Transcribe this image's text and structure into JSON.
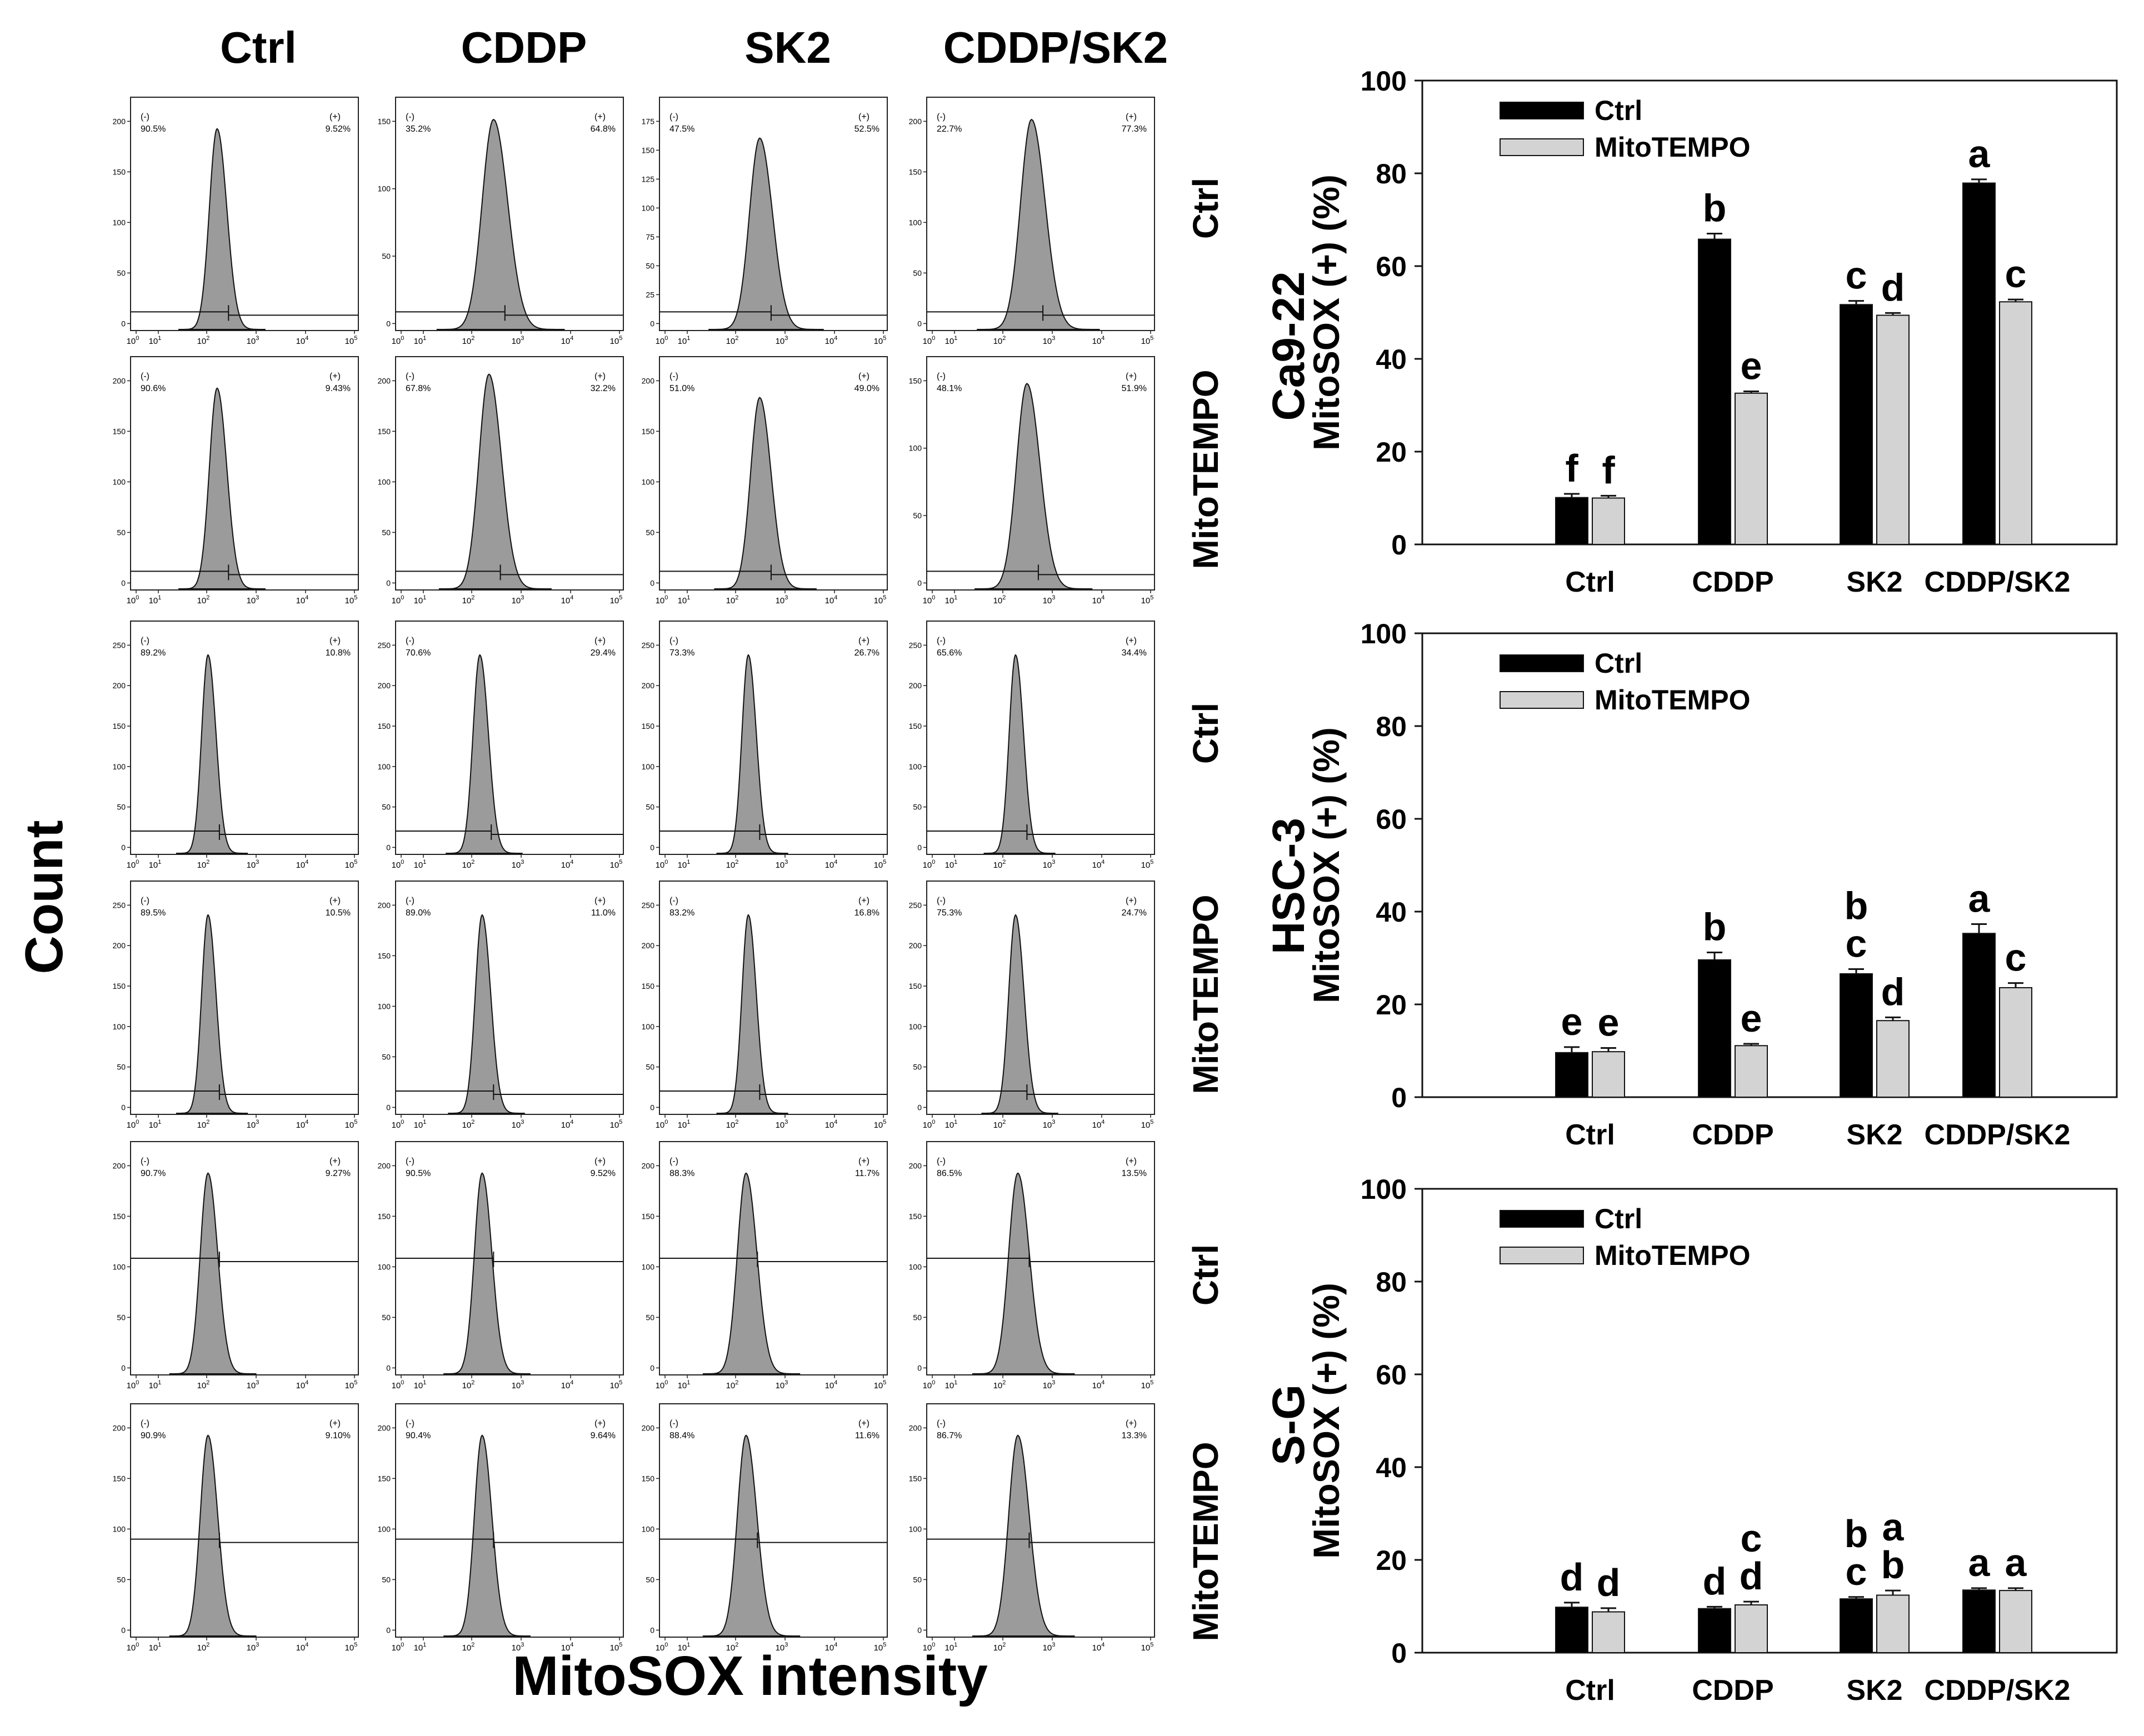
{
  "headers": {
    "columns": [
      "Ctrl",
      "CDDP",
      "SK2",
      "CDDP/SK2"
    ],
    "y_label": "Count",
    "x_label": "MitoSOX intensity"
  },
  "cell_lines": [
    "Ca9-22",
    "HSC-3",
    "S-G"
  ],
  "flow_rows": [
    {
      "label": "Ctrl",
      "yticks": [
        [
          0,
          50,
          100,
          150,
          200
        ],
        [
          0,
          50,
          100,
          150
        ],
        [
          0,
          25,
          50,
          75,
          100,
          125,
          150,
          175
        ],
        [
          0,
          50,
          100,
          150,
          200
        ]
      ],
      "panels": [
        {
          "neg": "90.5%",
          "pos": "9.52%"
        },
        {
          "neg": "35.2%",
          "pos": "64.8%"
        },
        {
          "neg": "47.5%",
          "pos": "52.5%"
        },
        {
          "neg": "22.7%",
          "pos": "77.3%"
        }
      ]
    },
    {
      "label": "MitoTEMPO",
      "yticks": [
        [
          0,
          50,
          100,
          150,
          200
        ],
        [
          0,
          50,
          100,
          150,
          200
        ],
        [
          0,
          50,
          100,
          150,
          200
        ],
        [
          0,
          50,
          100,
          150
        ]
      ],
      "panels": [
        {
          "neg": "90.6%",
          "pos": "9.43%"
        },
        {
          "neg": "67.8%",
          "pos": "32.2%"
        },
        {
          "neg": "51.0%",
          "pos": "49.0%"
        },
        {
          "neg": "48.1%",
          "pos": "51.9%"
        }
      ]
    },
    {
      "label": "Ctrl",
      "yticks": [
        [
          0,
          50,
          100,
          150,
          200,
          250
        ],
        [
          0,
          50,
          100,
          150,
          200,
          250
        ],
        [
          0,
          50,
          100,
          150,
          200,
          250
        ],
        [
          0,
          50,
          100,
          150,
          200,
          250
        ]
      ],
      "panels": [
        {
          "neg": "89.2%",
          "pos": "10.8%"
        },
        {
          "neg": "70.6%",
          "pos": "29.4%"
        },
        {
          "neg": "73.3%",
          "pos": "26.7%"
        },
        {
          "neg": "65.6%",
          "pos": "34.4%"
        }
      ]
    },
    {
      "label": "MitoTEMPO",
      "yticks": [
        [
          0,
          50,
          100,
          150,
          200,
          250
        ],
        [
          0,
          50,
          100,
          150,
          200
        ],
        [
          0,
          50,
          100,
          150,
          200,
          250
        ],
        [
          0,
          50,
          100,
          150,
          200,
          250
        ]
      ],
      "panels": [
        {
          "neg": "89.5%",
          "pos": "10.5%"
        },
        {
          "neg": "89.0%",
          "pos": "11.0%"
        },
        {
          "neg": "83.2%",
          "pos": "16.8%"
        },
        {
          "neg": "75.3%",
          "pos": "24.7%"
        }
      ]
    },
    {
      "label": "Ctrl",
      "yticks": [
        [
          0,
          50,
          100,
          150,
          200
        ],
        [
          0,
          50,
          100,
          150,
          200
        ],
        [
          0,
          50,
          100,
          150,
          200
        ],
        [
          0,
          50,
          100,
          150,
          200
        ]
      ],
      "panels": [
        {
          "neg": "90.7%",
          "pos": "9.27%"
        },
        {
          "neg": "90.5%",
          "pos": "9.52%"
        },
        {
          "neg": "88.3%",
          "pos": "11.7%"
        },
        {
          "neg": "86.5%",
          "pos": "13.5%"
        }
      ]
    },
    {
      "label": "MitoTEMPO",
      "yticks": [
        [
          0,
          50,
          100,
          150,
          200
        ],
        [
          0,
          50,
          100,
          150,
          200
        ],
        [
          0,
          50,
          100,
          150,
          200
        ],
        [
          0,
          50,
          100,
          150,
          200
        ]
      ],
      "panels": [
        {
          "neg": "90.9%",
          "pos": "9.10%"
        },
        {
          "neg": "90.4%",
          "pos": "9.64%"
        },
        {
          "neg": "88.4%",
          "pos": "11.6%"
        },
        {
          "neg": "86.7%",
          "pos": "13.3%"
        }
      ]
    }
  ],
  "flow_gate_labels": {
    "neg": "(-)",
    "pos": "(+)"
  },
  "chart_data": [
    {
      "type": "bar",
      "cell_line": "Ca9-22",
      "categories": [
        "Ctrl",
        "CDDP",
        "SK2",
        "CDDP/SK2"
      ],
      "ylabel": "MitoSOX (+) (%)",
      "ylim": [
        0,
        100
      ],
      "yticks": [
        0,
        20,
        40,
        60,
        80,
        100
      ],
      "legend_position": "top-left",
      "series": [
        {
          "name": "Ctrl",
          "color": "#000000",
          "values": [
            10.1,
            65.8,
            51.7,
            77.9
          ],
          "errors": [
            0.8,
            1.2,
            0.8,
            0.8
          ],
          "letters": [
            [
              "f"
            ],
            [
              "b"
            ],
            [
              "c"
            ],
            [
              "a"
            ]
          ]
        },
        {
          "name": "MitoTEMPO",
          "color": "#d3d3d3",
          "values": [
            10.0,
            32.6,
            49.4,
            52.3
          ],
          "errors": [
            0.5,
            0.4,
            0.5,
            0.5
          ],
          "letters": [
            [
              "f"
            ],
            [
              "e"
            ],
            [
              "d"
            ],
            [
              "c"
            ]
          ]
        }
      ]
    },
    {
      "type": "bar",
      "cell_line": "HSC-3",
      "categories": [
        "Ctrl",
        "CDDP",
        "SK2",
        "CDDP/SK2"
      ],
      "ylabel": "MitoSOX (+) (%)",
      "ylim": [
        0,
        100
      ],
      "yticks": [
        0,
        20,
        40,
        60,
        80,
        100
      ],
      "legend_position": "top-left",
      "series": [
        {
          "name": "Ctrl",
          "color": "#000000",
          "values": [
            9.6,
            29.6,
            26.6,
            35.3
          ],
          "errors": [
            1.2,
            1.6,
            1.0,
            2.0
          ],
          "letters": [
            [
              "e"
            ],
            [
              "b"
            ],
            [
              "b",
              "c"
            ],
            [
              "a"
            ]
          ]
        },
        {
          "name": "MitoTEMPO",
          "color": "#d3d3d3",
          "values": [
            9.8,
            11.1,
            16.5,
            23.6
          ],
          "errors": [
            0.8,
            0.4,
            0.7,
            1.0
          ],
          "letters": [
            [
              "e"
            ],
            [
              "e"
            ],
            [
              "d"
            ],
            [
              "c"
            ]
          ]
        }
      ]
    },
    {
      "type": "bar",
      "cell_line": "S-G",
      "categories": [
        "Ctrl",
        "CDDP",
        "SK2",
        "CDDP/SK2"
      ],
      "ylabel": "MitoSOX (+) (%)",
      "ylim": [
        0,
        100
      ],
      "yticks": [
        0,
        20,
        40,
        60,
        80,
        100
      ],
      "legend_position": "top-left",
      "series": [
        {
          "name": "Ctrl",
          "color": "#000000",
          "values": [
            9.8,
            9.5,
            11.6,
            13.5
          ],
          "errors": [
            1.0,
            0.4,
            0.4,
            0.4
          ],
          "letters": [
            [
              "d"
            ],
            [
              "d"
            ],
            [
              "b",
              "c"
            ],
            [
              "a"
            ]
          ]
        },
        {
          "name": "MitoTEMPO",
          "color": "#d3d3d3",
          "values": [
            8.8,
            10.3,
            12.4,
            13.4
          ],
          "errors": [
            0.8,
            0.7,
            1.0,
            0.5
          ],
          "letters": [
            [
              "d"
            ],
            [
              "c",
              "d"
            ],
            [
              "a",
              "b"
            ],
            [
              "a"
            ]
          ]
        }
      ]
    }
  ]
}
